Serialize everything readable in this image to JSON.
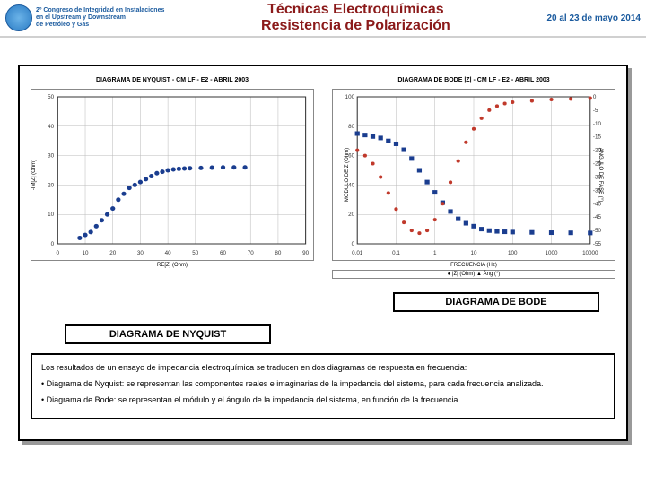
{
  "header": {
    "logo_line1": "2º Congreso de Integridad en Instalaciones",
    "logo_line2": "en el Upstream y Downstream",
    "logo_line3": "de Petróleo y Gas",
    "title_line1": "Técnicas Electroquímicas",
    "title_line2": "Resistencia de Polarización",
    "date": "20 al 23 de mayo 2014"
  },
  "nyquist": {
    "title": "DIAGRAMA DE NYQUIST - CM LF - E2 - ABRIL 2003",
    "xlabel": "RE[Z] (Ohm)",
    "ylabel": "-IM[Z] (Ohm)",
    "xlim": [
      0,
      90
    ],
    "xtick_step": 10,
    "ylim": [
      0,
      50
    ],
    "ytick_step": 10,
    "grid_color": "#bbb",
    "series": [
      {
        "color": "#1a3d8f",
        "marker": "circle",
        "size": 2.5,
        "points": [
          [
            8,
            2
          ],
          [
            10,
            3
          ],
          [
            12,
            4
          ],
          [
            14,
            6
          ],
          [
            16,
            8
          ],
          [
            18,
            10
          ],
          [
            20,
            12
          ],
          [
            22,
            15
          ],
          [
            24,
            17
          ],
          [
            26,
            19
          ],
          [
            28,
            20
          ],
          [
            30,
            21
          ],
          [
            32,
            22
          ],
          [
            34,
            23
          ],
          [
            36,
            24
          ],
          [
            38,
            24.5
          ],
          [
            40,
            25
          ],
          [
            42,
            25.3
          ],
          [
            44,
            25.5
          ],
          [
            46,
            25.6
          ],
          [
            48,
            25.7
          ],
          [
            52,
            25.8
          ],
          [
            56,
            25.9
          ],
          [
            60,
            26
          ],
          [
            64,
            26
          ],
          [
            68,
            26
          ]
        ]
      }
    ],
    "caption": "DIAGRAMA DE NYQUIST"
  },
  "bode": {
    "title": "DIAGRAMA DE BODE |Z| - CM LF - E2 - ABRIL 2003",
    "xlabel": "FRECUENCIA (Hz)",
    "ylabel": "MODULO DE Z (Ohm)",
    "ylabel2": "ANGULO DE FASE (°)",
    "xlim_log": [
      -2,
      4
    ],
    "ylim": [
      0,
      100
    ],
    "ytick_step": 20,
    "ylim2": [
      -55,
      0
    ],
    "ytick2_step": 5,
    "grid_color": "#bbb",
    "series_z": {
      "color": "#1a3d8f",
      "marker": "square",
      "size": 2.5,
      "points": [
        [
          -2,
          75
        ],
        [
          -1.8,
          74
        ],
        [
          -1.6,
          73
        ],
        [
          -1.4,
          72
        ],
        [
          -1.2,
          70
        ],
        [
          -1,
          68
        ],
        [
          -0.8,
          64
        ],
        [
          -0.6,
          58
        ],
        [
          -0.4,
          50
        ],
        [
          -0.2,
          42
        ],
        [
          0,
          35
        ],
        [
          0.2,
          28
        ],
        [
          0.4,
          22
        ],
        [
          0.6,
          17
        ],
        [
          0.8,
          14
        ],
        [
          1,
          12
        ],
        [
          1.2,
          10
        ],
        [
          1.4,
          9
        ],
        [
          1.6,
          8.5
        ],
        [
          1.8,
          8.2
        ],
        [
          2,
          8
        ],
        [
          2.5,
          7.8
        ],
        [
          3,
          7.6
        ],
        [
          3.5,
          7.5
        ],
        [
          4,
          7.4
        ]
      ]
    },
    "series_ang": {
      "color": "#c0392b",
      "marker": "circle",
      "size": 2,
      "points": [
        [
          -2,
          -20
        ],
        [
          -1.8,
          -22
        ],
        [
          -1.6,
          -25
        ],
        [
          -1.4,
          -30
        ],
        [
          -1.2,
          -36
        ],
        [
          -1,
          -42
        ],
        [
          -0.8,
          -47
        ],
        [
          -0.6,
          -50
        ],
        [
          -0.4,
          -51
        ],
        [
          -0.2,
          -50
        ],
        [
          0,
          -46
        ],
        [
          0.2,
          -40
        ],
        [
          0.4,
          -32
        ],
        [
          0.6,
          -24
        ],
        [
          0.8,
          -17
        ],
        [
          1,
          -12
        ],
        [
          1.2,
          -8
        ],
        [
          1.4,
          -5
        ],
        [
          1.6,
          -3.5
        ],
        [
          1.8,
          -2.5
        ],
        [
          2,
          -2
        ],
        [
          2.5,
          -1.5
        ],
        [
          3,
          -1
        ],
        [
          3.5,
          -0.8
        ],
        [
          4,
          -0.5
        ]
      ]
    },
    "legend": "● |Z| (Ohm)    ▲ Áng (°)",
    "caption": "DIAGRAMA DE BODE"
  },
  "body": {
    "p1": "Los resultados de un ensayo de impedancia electroquímica se traducen en dos diagramas de respuesta en frecuencia:",
    "p2": "• Diagrama de Nyquist: se representan las componentes reales e imaginarias de la impedancia del sistema, para cada frecuencia analizada.",
    "p3": "• Diagrama de Bode: se representan el módulo y el ángulo de la impedancia del sistema, en función de la frecuencia."
  }
}
